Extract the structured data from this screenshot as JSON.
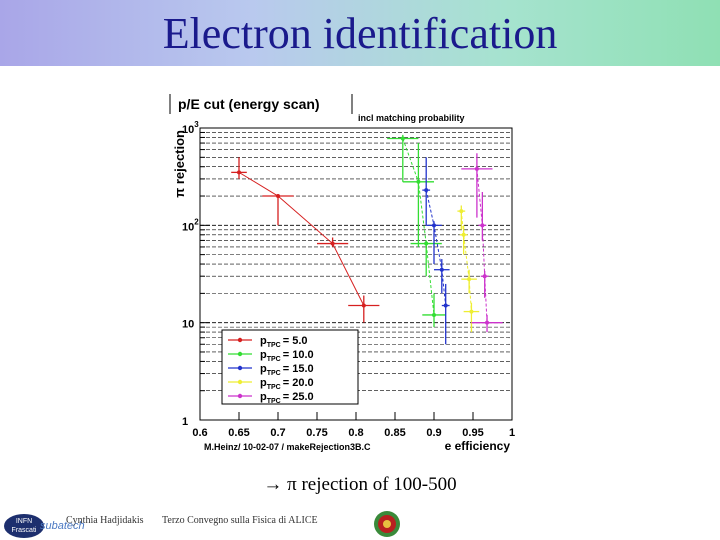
{
  "slide": {
    "title": "Electron identification",
    "summary": "→ π rejection of 100-500",
    "footer_author": "Cynthia Hadjidakis",
    "footer_event": "Terzo Convegno sulla Fisica di ALICE",
    "logo_left_line1": "INFN",
    "logo_left_line2": "Frascati",
    "logo_left_brand": "subatech"
  },
  "chart_data": {
    "type": "scatter",
    "title": "p/E cut (energy scan)",
    "subtitle": "incl matching probability",
    "xlabel": "e efficiency",
    "ylabel": "π rejection",
    "credit": "M.Heinz/ 10-02-07 / makeRejection3B.C",
    "xlim": [
      0.6,
      1.0
    ],
    "ylim": [
      1,
      1000
    ],
    "yscale": "log",
    "x_ticks": [
      "0.6",
      "0.65",
      "0.7",
      "0.75",
      "0.8",
      "0.85",
      "0.9",
      "0.95",
      "1"
    ],
    "y_ticks": [
      {
        "value": 1,
        "label": "1"
      },
      {
        "value": 10,
        "label": "10"
      },
      {
        "value": 100,
        "label": "10",
        "exp": "2"
      },
      {
        "value": 1000,
        "label": "10",
        "exp": "3"
      }
    ],
    "legend": {
      "position": "bottom-left",
      "entries": [
        {
          "prefix": "p",
          "sub": "TPC",
          "suffix": "= 5.0"
        },
        {
          "prefix": "p",
          "sub": "TPC",
          "suffix": "= 10.0"
        },
        {
          "prefix": "p",
          "sub": "TPC",
          "suffix": "= 15.0"
        },
        {
          "prefix": "p",
          "sub": "TPC",
          "suffix": "= 20.0"
        },
        {
          "prefix": "p",
          "sub": "TPC",
          "suffix": "= 25.0"
        }
      ]
    },
    "colors": [
      "#d62020",
      "#33dd33",
      "#2233cc",
      "#eeee33",
      "#cc33cc"
    ],
    "series": [
      {
        "x": [
          0.65,
          0.7,
          0.77,
          0.81
        ],
        "y": [
          350,
          200,
          65,
          15
        ],
        "ylo": [
          300,
          100,
          60,
          10
        ],
        "yhi": [
          500,
          205,
          75,
          19
        ],
        "xerr": [
          0.01,
          0.02,
          0.02,
          0.02
        ]
      },
      {
        "x": [
          0.86,
          0.88,
          0.89,
          0.9
        ],
        "y": [
          780,
          280,
          65,
          12
        ],
        "ylo": [
          280,
          60,
          30,
          9
        ],
        "yhi": [
          850,
          700,
          70,
          20
        ],
        "xerr": [
          0.02,
          0.02,
          0.02,
          0.015
        ]
      },
      {
        "x": [
          0.89,
          0.9,
          0.91,
          0.915
        ],
        "y": [
          230,
          100,
          35,
          15
        ],
        "ylo": [
          100,
          40,
          20,
          6
        ],
        "yhi": [
          500,
          110,
          45,
          25
        ],
        "xerr": [
          0.005,
          0.01,
          0.01,
          0.005
        ]
      },
      {
        "x": [
          0.935,
          0.938,
          0.945,
          0.948
        ],
        "y": [
          140,
          80,
          28,
          13
        ],
        "ylo": [
          90,
          50,
          20,
          8
        ],
        "yhi": [
          160,
          100,
          35,
          16
        ],
        "xerr": [
          0.005,
          0.005,
          0.01,
          0.01
        ]
      },
      {
        "x": [
          0.955,
          0.962,
          0.965,
          0.968
        ],
        "y": [
          380,
          100,
          30,
          10
        ],
        "ylo": [
          120,
          70,
          18,
          8
        ],
        "yhi": [
          550,
          220,
          34,
          12
        ],
        "xerr": [
          0.02,
          0.005,
          0.005,
          0.02
        ]
      }
    ]
  }
}
